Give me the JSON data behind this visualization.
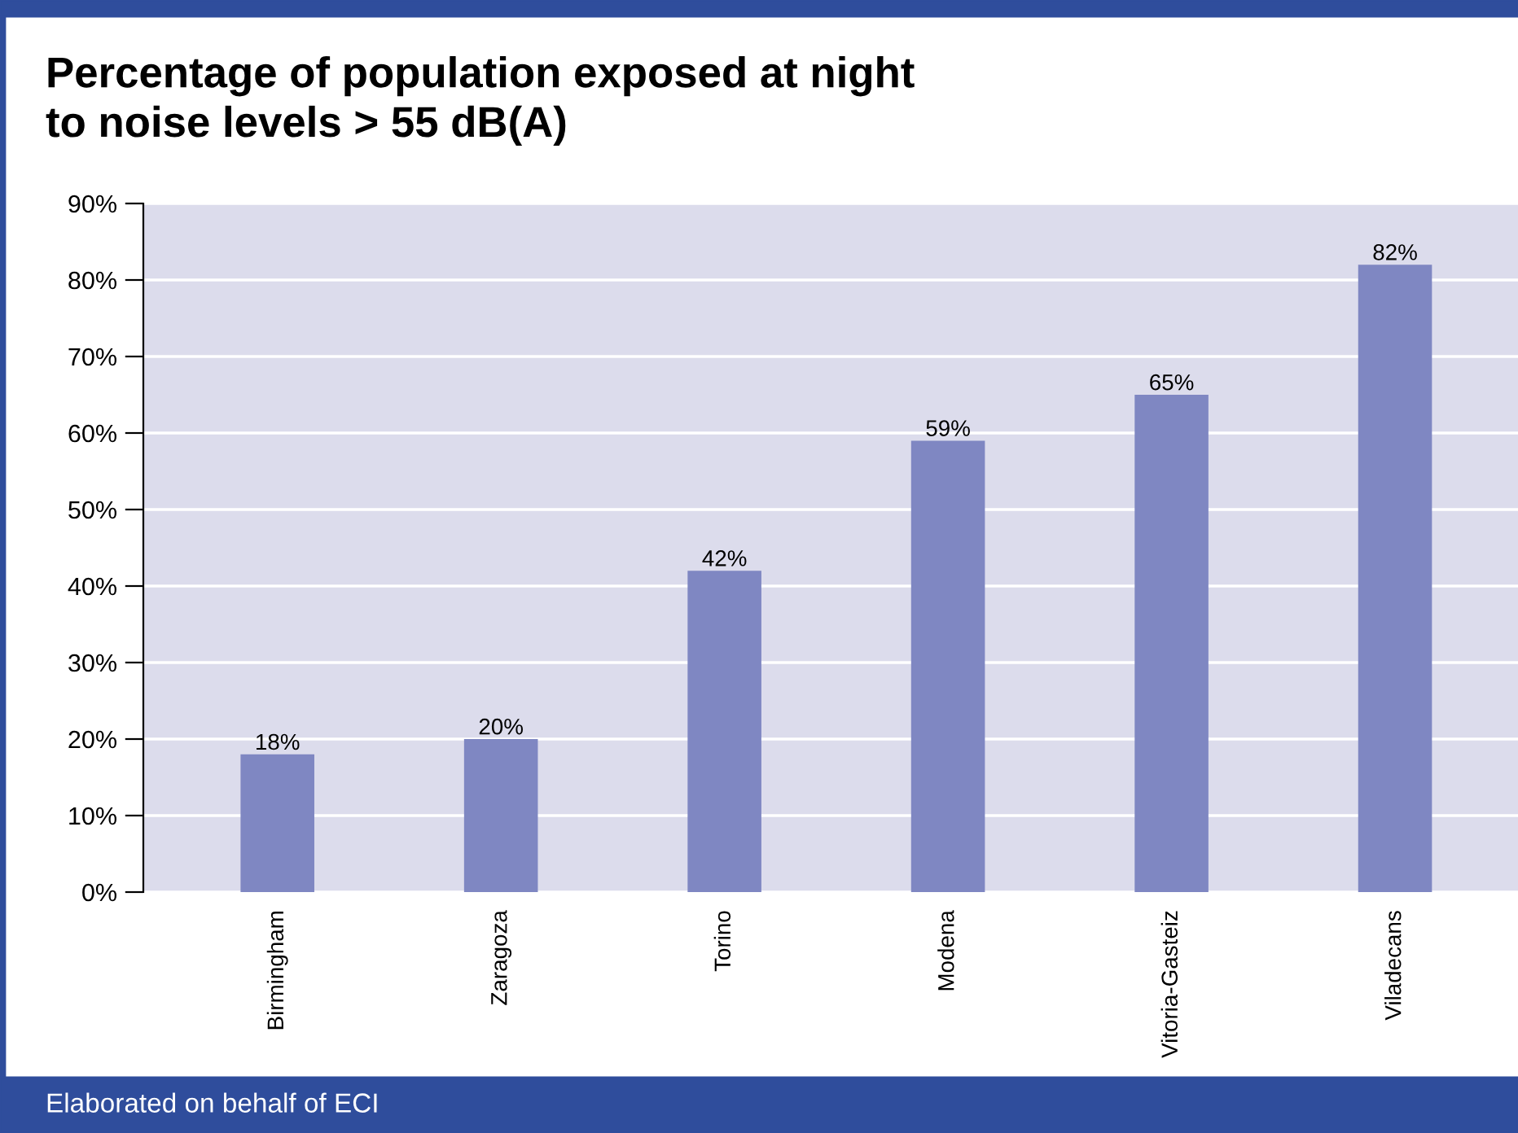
{
  "chart_data": {
    "type": "bar",
    "title": "Percentage of population exposed at night\nto noise levels > 55 dB(A)",
    "categories": [
      "Birmingham",
      "Zaragoza",
      "Torino",
      "Modena",
      "Vitoria-Gasteiz",
      "Viladecans"
    ],
    "values": [
      18,
      20,
      42,
      59,
      65,
      82
    ],
    "color": "#7f87c2",
    "value_labels": [
      "18%",
      "20%",
      "42%",
      "59%",
      "65%",
      "82%"
    ],
    "ylim": [
      0,
      90
    ],
    "yticks": [
      {
        "value": 0,
        "label": "0%"
      },
      {
        "value": 10,
        "label": "10%"
      },
      {
        "value": 20,
        "label": "20%"
      },
      {
        "value": 30,
        "label": "30%"
      },
      {
        "value": 40,
        "label": "40%"
      },
      {
        "value": 50,
        "label": "50%"
      },
      {
        "value": 60,
        "label": "60%"
      },
      {
        "value": 70,
        "label": "70%"
      },
      {
        "value": 80,
        "label": "80%"
      },
      {
        "value": 90,
        "label": "90%"
      }
    ],
    "grid": "y",
    "annotations": [
      "Elaborated on behalf of ECI"
    ]
  }
}
